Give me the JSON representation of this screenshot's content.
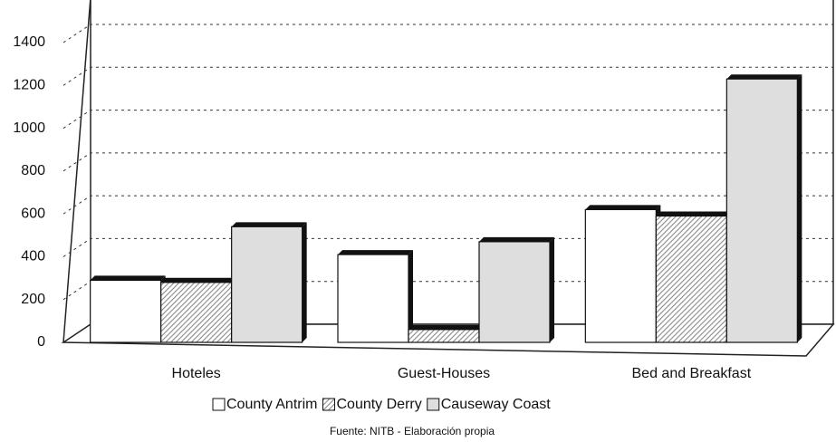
{
  "chart_data": {
    "type": "bar3d",
    "categories": [
      "Hoteles",
      "Guest-Houses",
      "Bed and Breakfast"
    ],
    "series": [
      {
        "name": "County Antrim",
        "color": "#ffffff",
        "values": [
          290,
          410,
          620
        ]
      },
      {
        "name": "County Derry",
        "color": "#8a8a8a",
        "values": [
          280,
          60,
          590
        ]
      },
      {
        "name": "Causeway Coast",
        "color": "#dedede",
        "values": [
          540,
          470,
          1230
        ]
      }
    ],
    "ylim": [
      0,
      1400
    ],
    "yticks": [
      0,
      200,
      400,
      600,
      800,
      1000,
      1200,
      1400
    ],
    "grid": true,
    "legend": "bottom",
    "source": "Fuente: NITB - Elaboración propia"
  }
}
